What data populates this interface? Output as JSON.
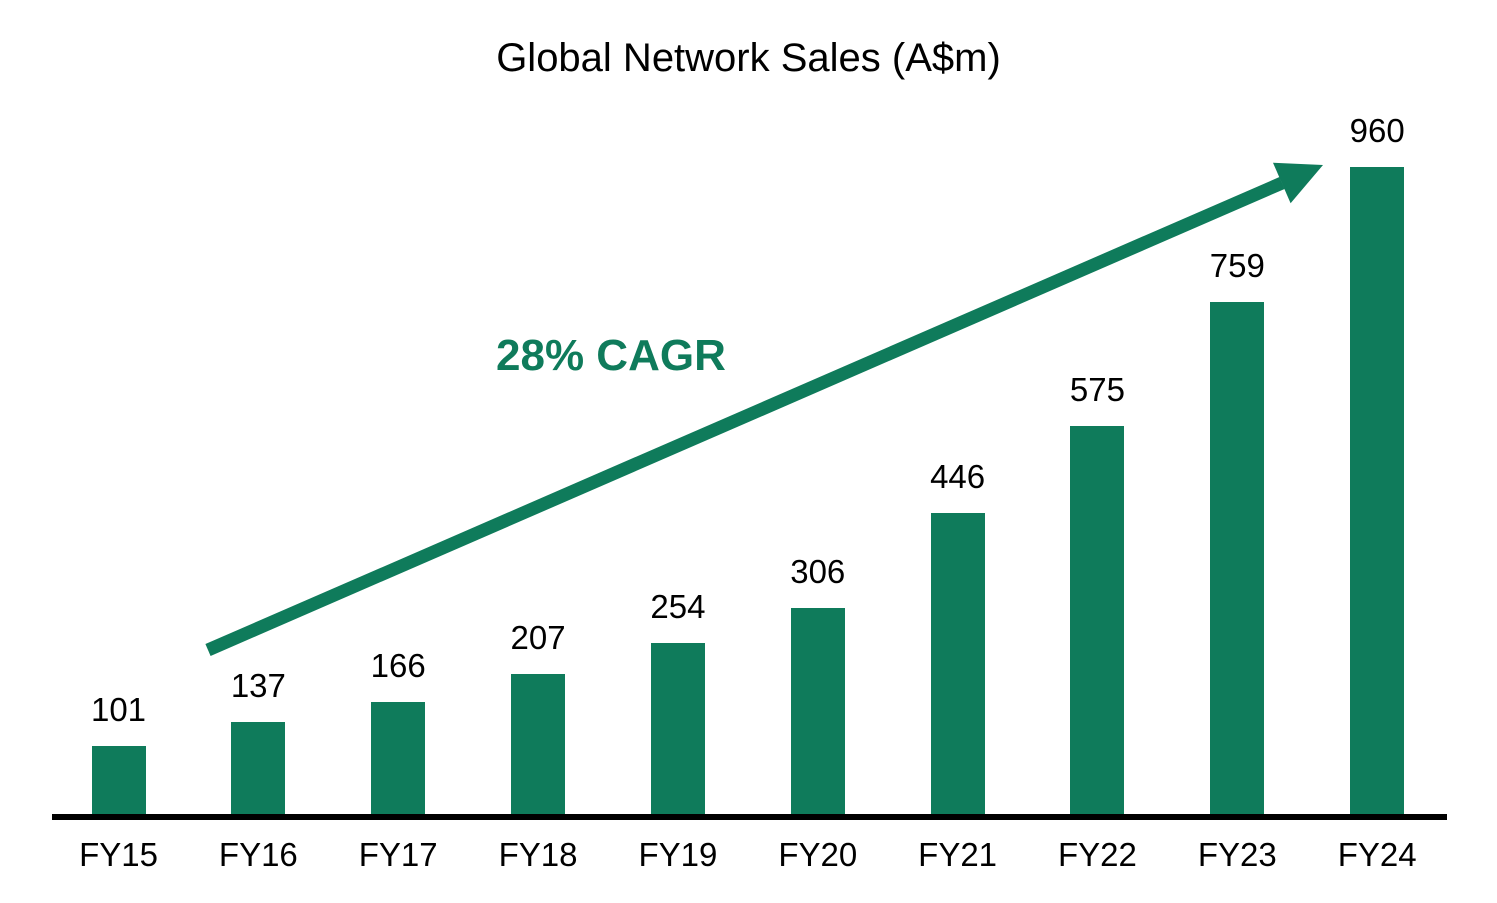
{
  "chart_data": {
    "type": "bar",
    "title": "Global Network Sales (A$m)",
    "categories": [
      "FY15",
      "FY16",
      "FY17",
      "FY18",
      "FY19",
      "FY20",
      "FY21",
      "FY22",
      "FY23",
      "FY24"
    ],
    "values": [
      101,
      137,
      166,
      207,
      254,
      306,
      446,
      575,
      759,
      960
    ],
    "xlabel": "",
    "ylabel": "",
    "ylim": [
      0,
      1000
    ],
    "grid": false,
    "legend": null,
    "value_labels_shown": true,
    "bar_color": "#0F7B5B",
    "label_color": "#000000",
    "axis_color": "#000000",
    "background_color": "#FFFFFF",
    "annotation": {
      "type": "trend-arrow",
      "label": "28% CAGR",
      "color": "#0F7B5B"
    }
  }
}
